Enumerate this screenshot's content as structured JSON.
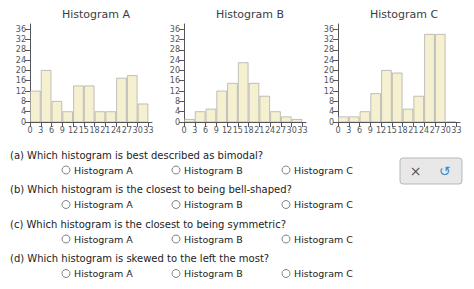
{
  "chart_data": [
    {
      "type": "histogram",
      "title": "Histogram A",
      "bins": [
        0,
        3,
        6,
        9,
        12,
        15,
        18,
        21,
        24,
        27,
        30,
        33
      ],
      "values": [
        12,
        20,
        8,
        4,
        14,
        14,
        4,
        4,
        17,
        18,
        7
      ],
      "color": "#f5f0d0",
      "xlim": [
        0,
        34
      ],
      "xticks": [
        0,
        3,
        6,
        9,
        12,
        15,
        18,
        21,
        24,
        27,
        30,
        33
      ],
      "ylim": [
        0,
        38
      ],
      "yticks": [
        0,
        4,
        8,
        12,
        16,
        20,
        24,
        28,
        32,
        36
      ],
      "grid": false
    },
    {
      "type": "histogram",
      "title": "Histogram B",
      "bins": [
        0,
        3,
        6,
        9,
        12,
        15,
        18,
        21,
        24,
        27,
        30,
        33
      ],
      "values": [
        1,
        4,
        5,
        12,
        15,
        23,
        15,
        10,
        4,
        2,
        1
      ],
      "color": "#f5f0d0",
      "xlim": [
        0,
        34
      ],
      "xticks": [
        0,
        3,
        6,
        9,
        12,
        15,
        18,
        21,
        24,
        27,
        30,
        33
      ],
      "ylim": [
        0,
        38
      ],
      "yticks": [
        0,
        4,
        8,
        12,
        16,
        20,
        24,
        28,
        32,
        36
      ],
      "grid": false
    },
    {
      "type": "histogram",
      "title": "Histogram C",
      "bins": [
        0,
        3,
        6,
        9,
        12,
        15,
        18,
        21,
        24,
        27,
        30,
        33
      ],
      "values": [
        2,
        2,
        4,
        11,
        20,
        19,
        5,
        10,
        34,
        34,
        0
      ],
      "color": "#f5f0d0",
      "xlim": [
        0,
        34
      ],
      "xticks": [
        0,
        3,
        6,
        9,
        12,
        15,
        18,
        21,
        24,
        27,
        30,
        33
      ],
      "ylim": [
        0,
        38
      ],
      "yticks": [
        0,
        4,
        8,
        12,
        16,
        20,
        24,
        28,
        32,
        36
      ],
      "grid": false
    }
  ],
  "annotations": [
    {
      "text": "(a) Which histogram is best described as bimodal?",
      "choices": [
        "Histogram A",
        "Histogram B",
        "Histogram C"
      ]
    },
    {
      "text": "(b) Which histogram is the closest to being bell-shaped?",
      "choices": [
        "Histogram A",
        "Histogram B",
        "Histogram C"
      ]
    },
    {
      "text": "(c) Which histogram is the closest to being symmetric?",
      "choices": [
        "Histogram A",
        "Histogram B",
        "Histogram C"
      ]
    },
    {
      "text": "(d) Which histogram is skewed to the left the most?",
      "choices": [
        "Histogram A",
        "Histogram B",
        "Histogram C"
      ]
    },
    {
      "text": "×"
    },
    {
      "text": "↺"
    }
  ]
}
